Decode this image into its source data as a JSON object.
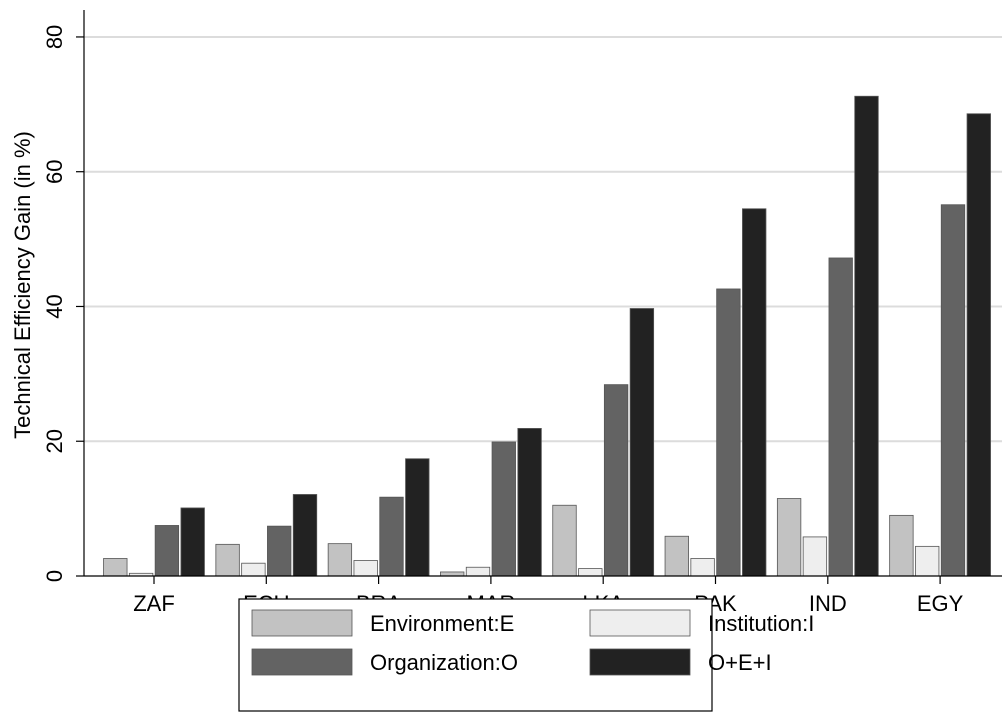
{
  "chart_data": {
    "type": "bar",
    "title": "",
    "xlabel": "",
    "ylabel": "Technical Efficiency Gain (in %)",
    "ylim": [
      0,
      84
    ],
    "yticks": [
      0,
      20,
      40,
      60,
      80
    ],
    "grid": true,
    "legend_position": "bottom",
    "categories": [
      "ZAF",
      "ECU",
      "BRA",
      "MAR",
      "LKA",
      "PAK",
      "IND",
      "EGY"
    ],
    "series": [
      {
        "name": "Environment:E",
        "color": "#c2c2c2",
        "values": [
          2.6,
          4.7,
          4.8,
          0.6,
          10.5,
          5.9,
          11.5,
          9.0
        ]
      },
      {
        "name": "Institution:I",
        "color": "#eeeeee",
        "values": [
          0.4,
          1.9,
          2.3,
          1.3,
          1.1,
          2.6,
          5.8,
          4.4
        ]
      },
      {
        "name": "Organization:O",
        "color": "#636363",
        "values": [
          7.5,
          7.4,
          11.7,
          19.9,
          28.4,
          42.6,
          47.2,
          55.1
        ]
      },
      {
        "name": "O+E+I",
        "color": "#222222",
        "values": [
          10.1,
          12.1,
          17.4,
          21.9,
          39.7,
          54.5,
          71.2,
          68.6
        ]
      }
    ]
  }
}
